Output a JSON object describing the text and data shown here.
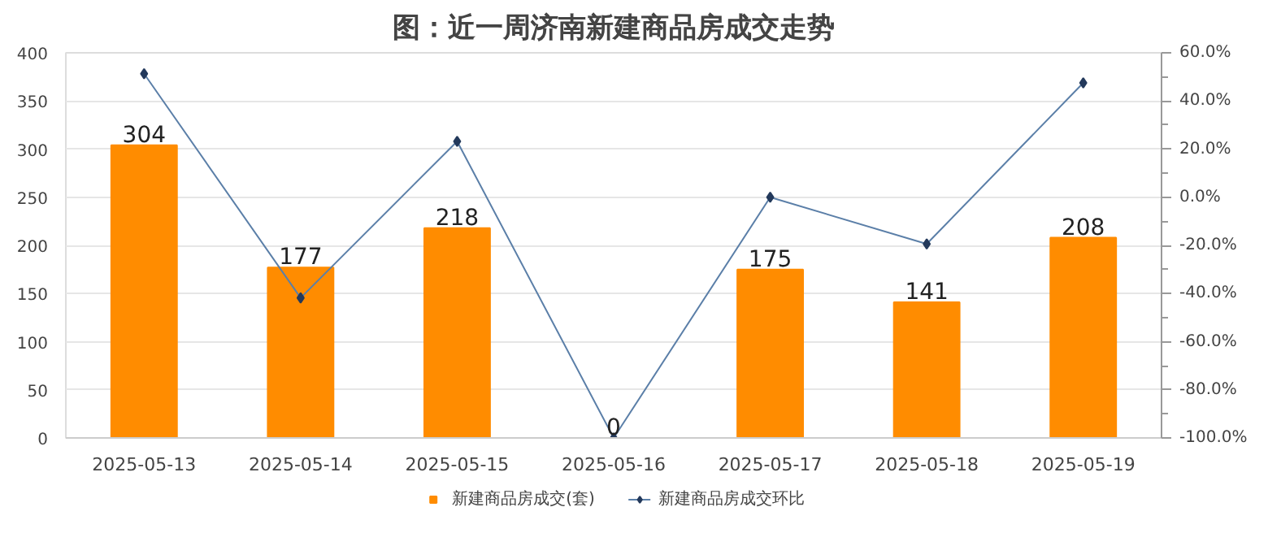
{
  "chart_data": {
    "type": "bar",
    "title": "图：近一周济南新建商品房成交走势",
    "categories": [
      "2025-05-13",
      "2025-05-14",
      "2025-05-15",
      "2025-05-16",
      "2025-05-17",
      "2025-05-18",
      "2025-05-19"
    ],
    "series": [
      {
        "name": "新建商品房成交(套)",
        "color": "#ff8c00",
        "values": [
          304,
          177,
          218,
          0,
          175,
          141,
          208
        ],
        "value_labels": [
          "304",
          "177",
          "218",
          "0",
          "175",
          "141",
          "208"
        ]
      },
      {
        "name": "新建商品房成交环比",
        "type": "line",
        "axis": "y2",
        "color": "#5b7fa8",
        "marker": "diamond",
        "values": [
          51.3,
          -41.8,
          23.2,
          -100,
          0,
          -19.4,
          47.5
        ]
      }
    ],
    "ylim": [
      0,
      400
    ],
    "yticks": [
      0,
      50,
      100,
      150,
      200,
      250,
      300,
      350,
      400
    ],
    "y2lim": [
      -100,
      60
    ],
    "y2ticks": [
      {
        "value": -100,
        "label": "-100.0%"
      },
      {
        "value": -80,
        "label": "-80.0%"
      },
      {
        "value": -60,
        "label": "-60.0%"
      },
      {
        "value": -40,
        "label": "-40.0%"
      },
      {
        "value": -20,
        "label": "-20.0%"
      },
      {
        "value": 0,
        "label": "0.0%"
      },
      {
        "value": 20,
        "label": "20.0%"
      },
      {
        "value": 40,
        "label": "40.0%"
      },
      {
        "value": 60,
        "label": "60.0%"
      }
    ],
    "grid": "y",
    "legend": "bottom"
  }
}
